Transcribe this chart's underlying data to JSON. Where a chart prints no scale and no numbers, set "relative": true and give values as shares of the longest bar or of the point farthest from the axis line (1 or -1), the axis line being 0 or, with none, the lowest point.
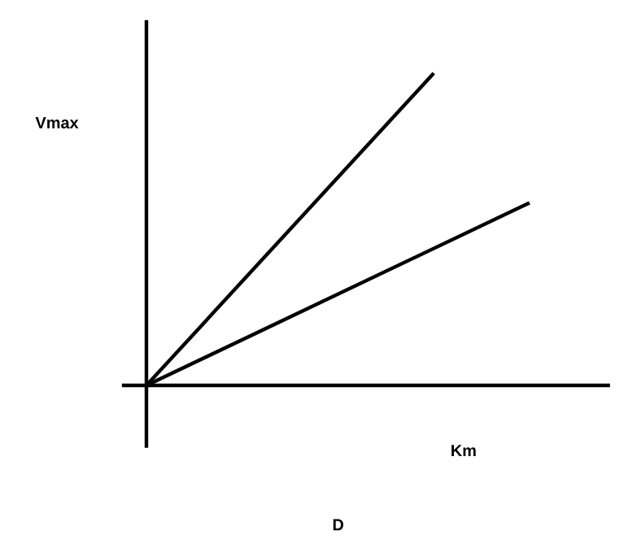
{
  "chart_data": {
    "type": "line",
    "relative": true,
    "xlabel": "Km",
    "ylabel": "Vmax",
    "annotations": [
      "D"
    ],
    "marker": "none",
    "line_style": "solid",
    "categories": [
      null,
      null,
      null,
      null,
      null
    ],
    "series": [
      {
        "color": "#000000",
        "values": [
          0,
          null,
          null,
          1,
          null
        ]
      },
      {
        "color": "#000000",
        "values": [
          0,
          null,
          null,
          null,
          0.585
        ]
      }
    ]
  }
}
